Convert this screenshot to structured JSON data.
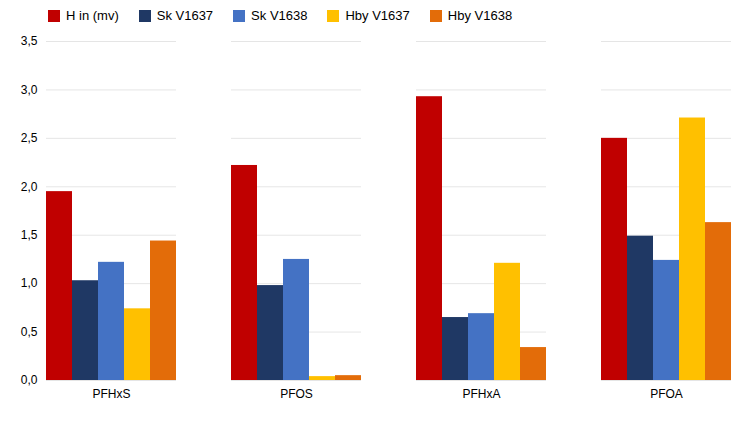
{
  "chart_data": {
    "type": "bar",
    "categories": [
      "PFHxS",
      "PFOS",
      "PFHxA",
      "PFOA"
    ],
    "series": [
      {
        "name": "H in (mv)",
        "color": "#C00000",
        "values": [
          1.95,
          2.22,
          2.93,
          2.5
        ]
      },
      {
        "name": "Sk V1637",
        "color": "#1F3864",
        "values": [
          1.03,
          0.98,
          0.65,
          1.49
        ]
      },
      {
        "name": "Sk V1638",
        "color": "#4472C4",
        "values": [
          1.22,
          1.25,
          0.69,
          1.24
        ]
      },
      {
        "name": "Hby V1637",
        "color": "#FFC000",
        "values": [
          0.74,
          0.04,
          1.21,
          2.71
        ]
      },
      {
        "name": "Hby V1638",
        "color": "#E36C09",
        "values": [
          1.44,
          0.05,
          0.34,
          1.63
        ]
      }
    ],
    "ylim": [
      0,
      3.5
    ],
    "yticks": [
      {
        "value": 0.0,
        "label": "0,0"
      },
      {
        "value": 0.5,
        "label": "0,5"
      },
      {
        "value": 1.0,
        "label": "1,0"
      },
      {
        "value": 1.5,
        "label": "1,5"
      },
      {
        "value": 2.0,
        "label": "2,0"
      },
      {
        "value": 2.5,
        "label": "2,5"
      },
      {
        "value": 3.0,
        "label": "3,0"
      },
      {
        "value": 3.5,
        "label": "3,5"
      }
    ],
    "grid": true,
    "legend": "upper left"
  }
}
